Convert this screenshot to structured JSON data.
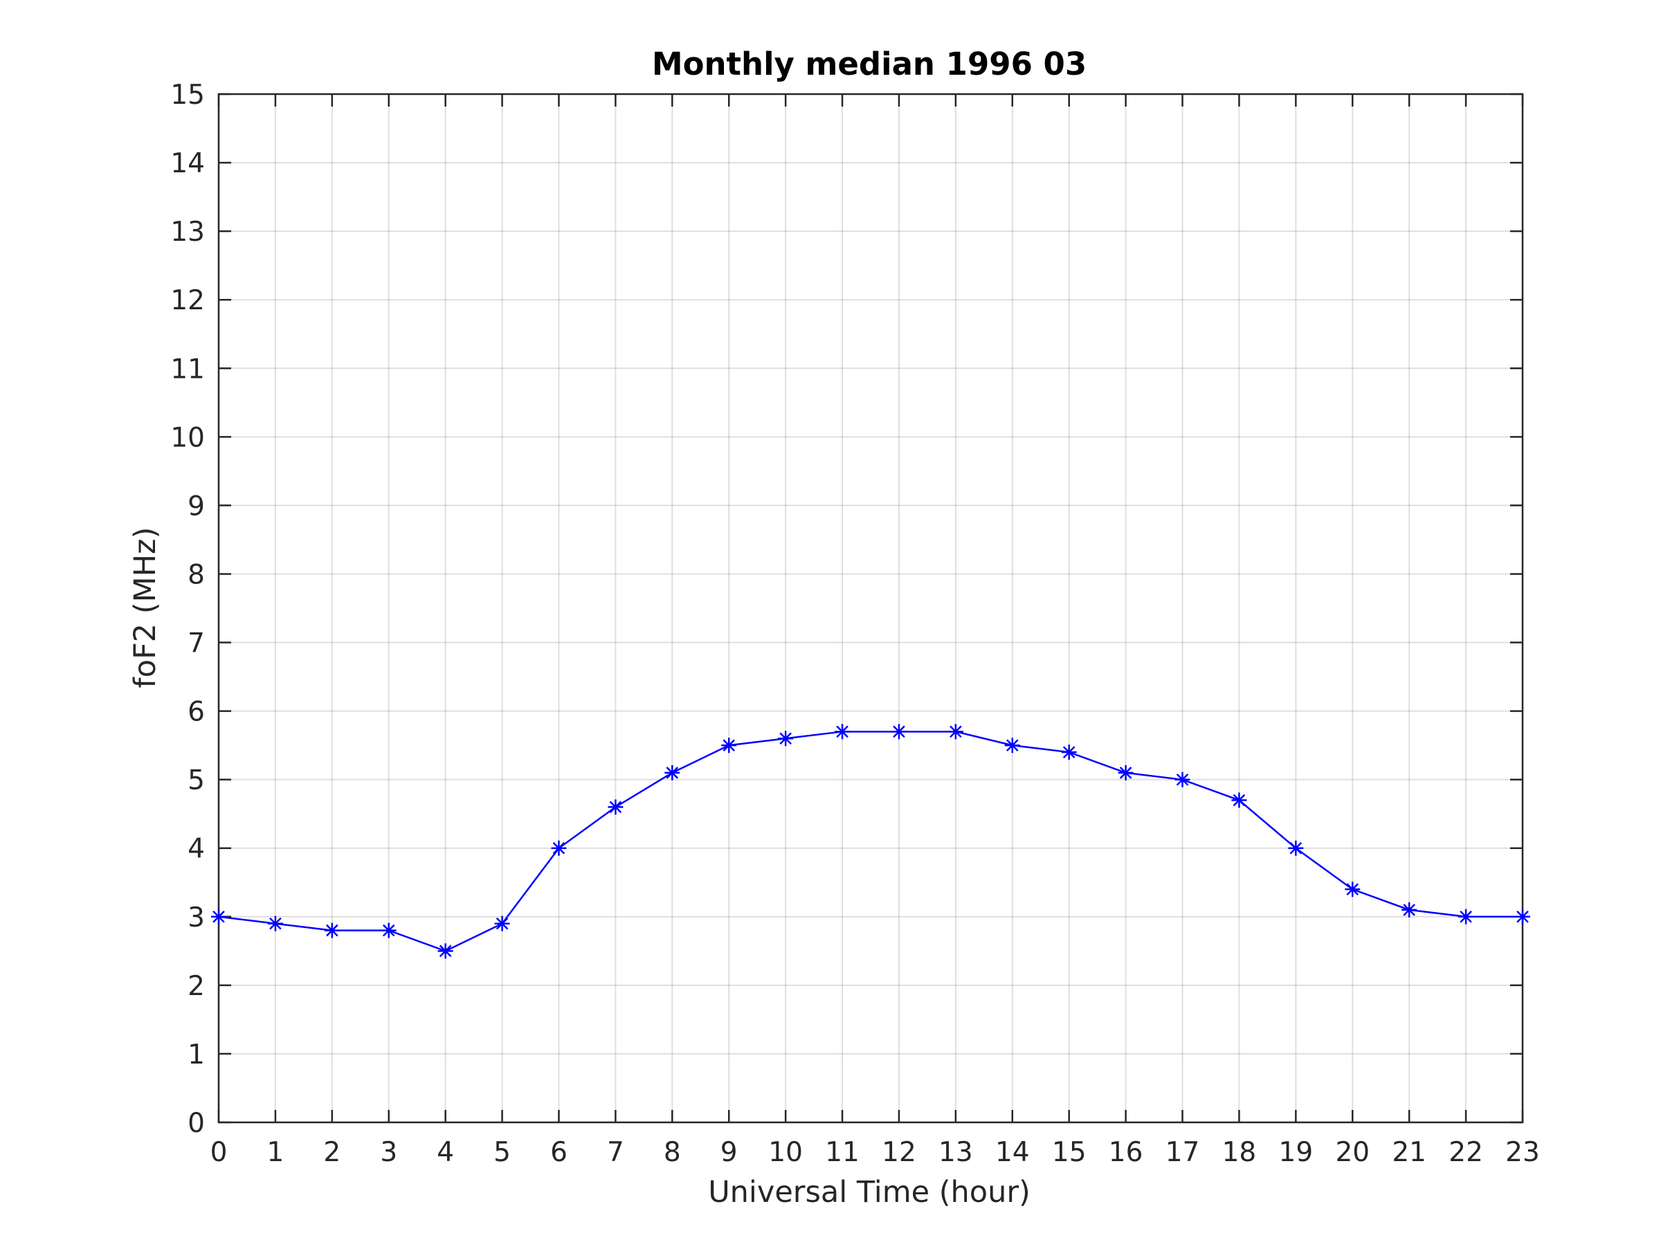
{
  "chart_data": {
    "type": "line",
    "title": "Monthly median 1996 03",
    "xlabel": "Universal Time (hour)",
    "ylabel": "foF2 (MHz)",
    "xlim": [
      0,
      23
    ],
    "ylim": [
      0,
      15
    ],
    "xticks": [
      0,
      1,
      2,
      3,
      4,
      5,
      6,
      7,
      8,
      9,
      10,
      11,
      12,
      13,
      14,
      15,
      16,
      17,
      18,
      19,
      20,
      21,
      22,
      23
    ],
    "yticks": [
      0,
      1,
      2,
      3,
      4,
      5,
      6,
      7,
      8,
      9,
      10,
      11,
      12,
      13,
      14,
      15
    ],
    "grid": true,
    "series": [
      {
        "color": "#0000ff",
        "marker": "asterisk",
        "x": [
          0,
          1,
          2,
          3,
          4,
          5,
          6,
          7,
          8,
          9,
          10,
          11,
          12,
          13,
          14,
          15,
          16,
          17,
          18,
          19,
          20,
          21,
          22,
          23
        ],
        "y": [
          3.0,
          2.9,
          2.8,
          2.8,
          2.5,
          2.9,
          4.0,
          4.6,
          5.1,
          5.5,
          5.6,
          5.7,
          5.7,
          5.7,
          5.5,
          5.4,
          5.1,
          5.0,
          4.7,
          4.0,
          3.4,
          3.1,
          3.0,
          3.0
        ]
      }
    ]
  }
}
